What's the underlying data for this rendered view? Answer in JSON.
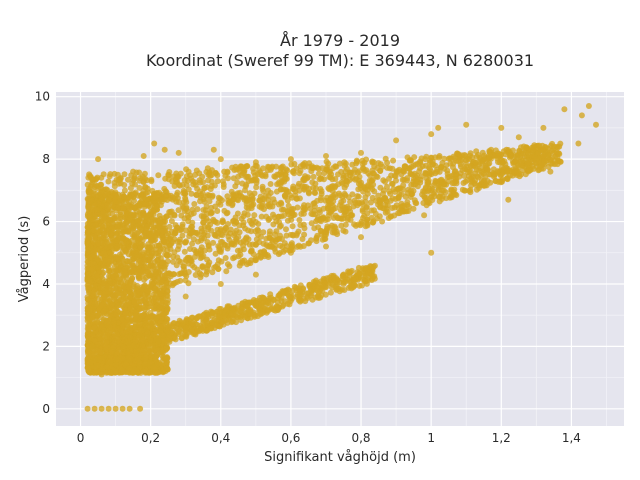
{
  "chart_data": {
    "type": "scatter",
    "title_lines": [
      "År 1979 - 2019",
      "Koordinat (Sweref 99 TM): E 369443, N 6280031"
    ],
    "xlabel": "Signifikant våghöjd (m)",
    "ylabel": "Vågperiod (s)",
    "xlim": [
      -0.07,
      1.55
    ],
    "ylim": [
      -0.55,
      10.15
    ],
    "xticks": [
      0,
      0.2,
      0.4,
      0.6,
      0.8,
      1,
      1.2,
      1.4
    ],
    "xtick_labels": [
      "0",
      "0,2",
      "0,4",
      "0,6",
      "0,8",
      "1",
      "1,2",
      "1,4"
    ],
    "yticks": [
      0,
      2,
      4,
      6,
      8,
      10
    ],
    "ytick_labels": [
      "0",
      "2",
      "4",
      "6",
      "8",
      "10"
    ],
    "grid": true,
    "marker_color": "#d4a520",
    "background_color": "#e5e5ee",
    "series": [
      {
        "values_description_free": true,
        "points": [
          [
            0.02,
            0.0
          ],
          [
            0.04,
            0.0
          ],
          [
            0.06,
            0.0
          ],
          [
            0.08,
            0.0
          ],
          [
            0.1,
            0.0
          ],
          [
            0.12,
            0.0
          ],
          [
            0.14,
            0.0
          ],
          [
            0.17,
            0.0
          ],
          [
            0.05,
            8.0
          ],
          [
            0.02,
            5.3
          ],
          [
            0.03,
            3.2
          ],
          [
            0.04,
            2.6
          ],
          [
            0.06,
            6.5
          ],
          [
            0.08,
            6.7
          ],
          [
            0.11,
            6.0
          ],
          [
            0.15,
            7.6
          ],
          [
            0.18,
            8.1
          ],
          [
            0.21,
            8.5
          ],
          [
            0.24,
            8.3
          ],
          [
            0.28,
            8.2
          ],
          [
            0.38,
            8.3
          ],
          [
            0.4,
            8.0
          ],
          [
            0.5,
            7.9
          ],
          [
            0.6,
            8.0
          ],
          [
            0.7,
            8.1
          ],
          [
            0.8,
            8.2
          ],
          [
            0.9,
            8.6
          ],
          [
            1.0,
            8.8
          ],
          [
            1.02,
            9.0
          ],
          [
            1.1,
            9.1
          ],
          [
            1.2,
            9.0
          ],
          [
            1.25,
            8.7
          ],
          [
            1.32,
            9.0
          ],
          [
            1.38,
            9.6
          ],
          [
            1.43,
            9.4
          ],
          [
            1.45,
            9.7
          ],
          [
            1.47,
            9.1
          ],
          [
            1.35,
            8.4
          ],
          [
            1.3,
            8.0
          ],
          [
            1.42,
            8.5
          ],
          [
            1.34,
            7.6
          ],
          [
            1.22,
            6.7
          ],
          [
            1.0,
            5.0
          ],
          [
            0.98,
            6.2
          ],
          [
            0.92,
            6.5
          ],
          [
            0.86,
            6.0
          ],
          [
            0.8,
            5.5
          ],
          [
            0.7,
            5.2
          ],
          [
            0.6,
            5.0
          ],
          [
            0.5,
            4.3
          ],
          [
            0.4,
            4.0
          ],
          [
            0.3,
            3.6
          ],
          [
            0.83,
            4.3
          ],
          [
            0.78,
            4.2
          ],
          [
            0.75,
            4.0
          ],
          [
            0.7,
            3.9
          ],
          [
            0.65,
            3.7
          ],
          [
            0.6,
            3.6
          ],
          [
            0.55,
            3.5
          ],
          [
            0.5,
            3.4
          ],
          [
            0.45,
            3.3
          ],
          [
            0.4,
            3.2
          ],
          [
            0.35,
            3.0
          ],
          [
            0.3,
            2.8
          ],
          [
            0.25,
            2.6
          ],
          [
            0.2,
            2.2
          ],
          [
            0.18,
            1.9
          ],
          [
            0.14,
            1.3
          ],
          [
            0.1,
            1.2
          ],
          [
            0.06,
            1.1
          ]
        ]
      }
    ]
  }
}
